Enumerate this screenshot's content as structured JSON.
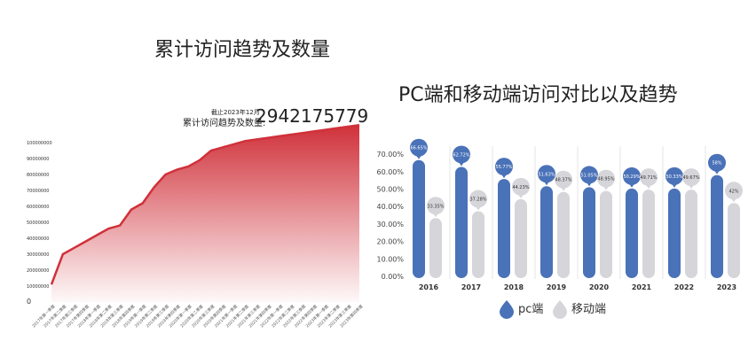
{
  "chart_data": [
    {
      "type": "area",
      "title": "累计访问趋势及数量",
      "note_date": "截止2023年12月",
      "note_label": "累计访问趋势及数量:",
      "note_value": "2942175779",
      "color": "#d0313a",
      "ylim": [
        0,
        110000000
      ],
      "yticks": [
        "0",
        "10000000",
        "20000000",
        "30000000",
        "40000000",
        "50000000",
        "60000000",
        "70000000",
        "80000000",
        "90000000",
        "100000000"
      ],
      "categories": [
        "2017年第一季度",
        "2017年第二季度",
        "2017年第三季度",
        "2017年第四季度",
        "2018年第一季度",
        "2018年第二季度",
        "2018年第三季度",
        "2018年第四季度",
        "2019年第一季度",
        "2019年第二季度",
        "2019年第三季度",
        "2019年第四季度",
        "2020年第一季度",
        "2020年第二季度",
        "2020年第三季度",
        "2020年第四季度",
        "2021年第一季度",
        "2021年第二季度",
        "2021年第三季度",
        "2021年第四季度",
        "2022年第一季度",
        "2022年第二季度",
        "2022年第三季度",
        "2022年第四季度",
        "2023年第一季度",
        "2023年第二季度",
        "2023年第三季度",
        "2023年第四季度"
      ],
      "values": [
        11000000,
        30000000,
        34000000,
        38000000,
        42000000,
        46000000,
        48000000,
        58000000,
        62000000,
        72000000,
        80000000,
        83000000,
        85000000,
        89000000,
        95000000,
        97000000,
        99000000,
        101000000,
        102000000,
        103000000,
        104000000,
        105000000,
        106000000,
        107000000,
        108000000,
        109000000,
        110000000,
        111000000
      ]
    },
    {
      "type": "bar",
      "title": "PC端和移动端访问对比以及趋势",
      "categories": [
        "2016",
        "2017",
        "2018",
        "2019",
        "2020",
        "2021",
        "2022",
        "2023"
      ],
      "ylim": [
        0,
        70
      ],
      "yticks": [
        "0.00%",
        "10.00%",
        "20.00%",
        "30.00%",
        "40.00%",
        "50.00%",
        "60.00%",
        "70.00%"
      ],
      "legend": "bottom",
      "series": [
        {
          "name": "pc端",
          "color": "#4a72b8",
          "values": [
            66.65,
            62.72,
            55.77,
            51.63,
            51.05,
            50.29,
            50.33,
            58
          ],
          "labels": [
            "66.65%",
            "62.72%",
            "55.77%",
            "51.63%",
            "51.05%",
            "50.29%",
            "50.33%",
            "58%"
          ]
        },
        {
          "name": "移动端",
          "color": "#d6d5da",
          "values": [
            33.35,
            37.28,
            44.23,
            48.37,
            48.95,
            49.71,
            49.67,
            42
          ],
          "labels": [
            "33.35%",
            "37.28%",
            "44.23%",
            "48.37%",
            "48.95%",
            "49.71%",
            "49.67%",
            "42%"
          ]
        }
      ]
    }
  ]
}
